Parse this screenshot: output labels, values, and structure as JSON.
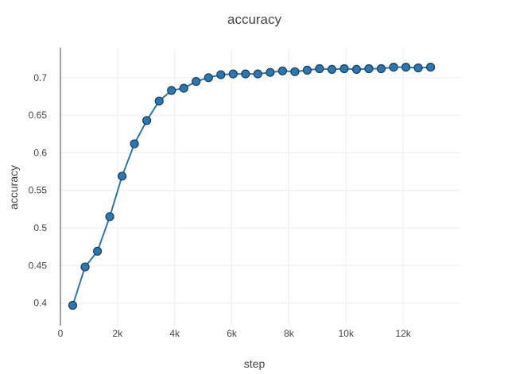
{
  "chart_data": {
    "type": "line",
    "title": "accuracy",
    "xlabel": "step",
    "ylabel": "accuracy",
    "xlim": [
      0,
      14000
    ],
    "ylim": [
      0.37,
      0.74
    ],
    "x_ticks": [
      0,
      2000,
      4000,
      6000,
      8000,
      10000,
      12000
    ],
    "x_tick_labels": [
      "0",
      "2k",
      "4k",
      "6k",
      "8k",
      "10k",
      "12k"
    ],
    "y_ticks": [
      0.4,
      0.45,
      0.5,
      0.55,
      0.6,
      0.65,
      0.7
    ],
    "y_tick_labels": [
      "0.4",
      "0.45",
      "0.5",
      "0.55",
      "0.6",
      "0.65",
      "0.7"
    ],
    "grid": true,
    "colors": {
      "line": "#2a77b1",
      "marker_edge": "#1a3f5c"
    },
    "series": [
      {
        "x": [
          432,
          864,
          1296,
          1728,
          2160,
          2592,
          3024,
          3456,
          3888,
          4320,
          4752,
          5184,
          5616,
          6048,
          6480,
          6912,
          7344,
          7776,
          8208,
          8640,
          9072,
          9504,
          9936,
          10368,
          10800,
          11232,
          11664,
          12096,
          12528,
          12960
        ],
        "y": [
          0.397,
          0.448,
          0.469,
          0.515,
          0.569,
          0.612,
          0.643,
          0.669,
          0.683,
          0.686,
          0.695,
          0.7,
          0.704,
          0.705,
          0.705,
          0.705,
          0.707,
          0.709,
          0.708,
          0.71,
          0.712,
          0.711,
          0.712,
          0.711,
          0.712,
          0.712,
          0.714,
          0.714,
          0.713,
          0.714
        ]
      }
    ]
  }
}
